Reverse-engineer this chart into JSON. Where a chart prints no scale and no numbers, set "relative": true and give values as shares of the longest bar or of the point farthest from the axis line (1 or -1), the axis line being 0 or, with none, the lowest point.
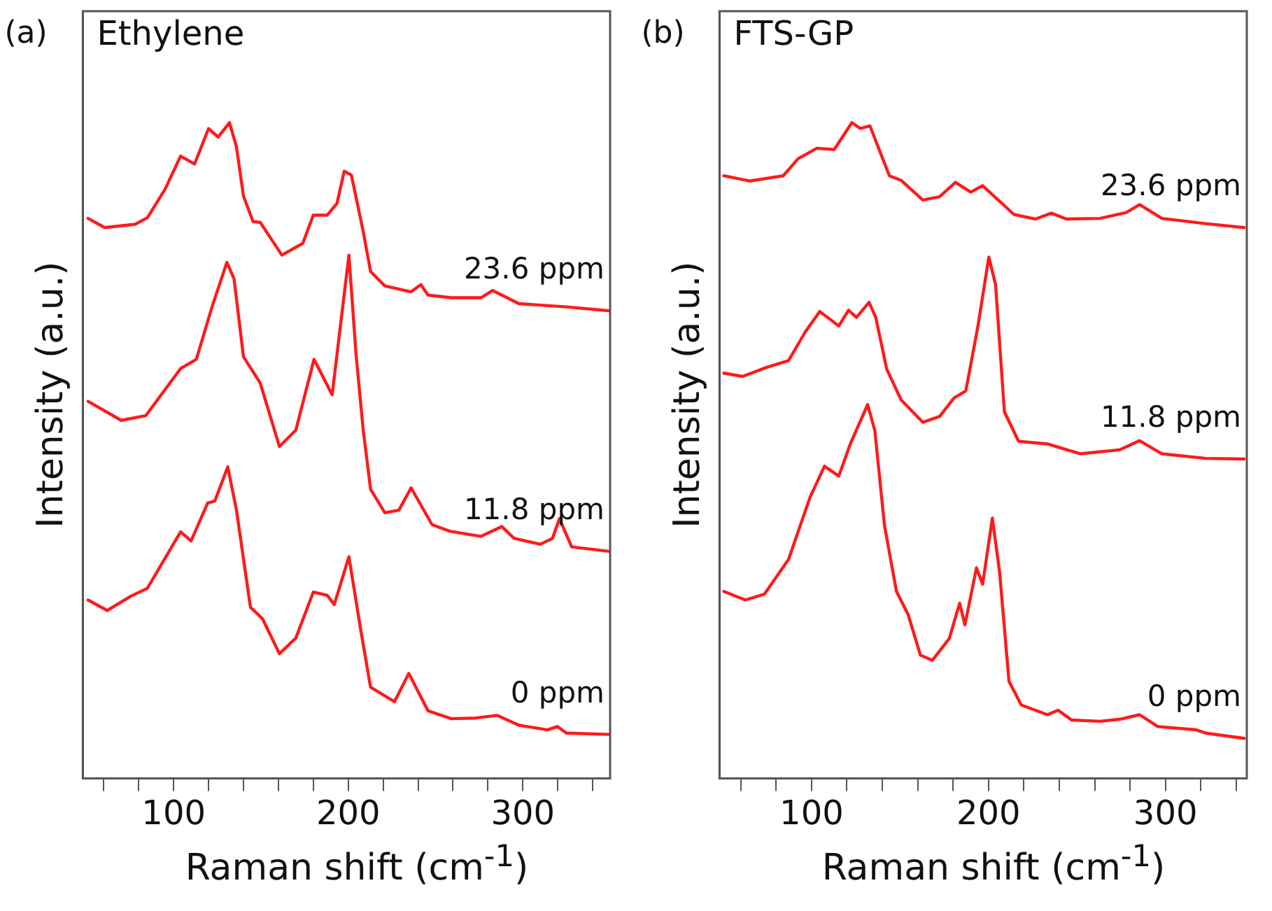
{
  "chart_data": [
    {
      "type": "line",
      "title": "Ethylene",
      "annotations": [
        "(a)"
      ],
      "xlabel": "Raman shift (cm$^{-1}$)",
      "ylabel": "Intensity (a.u.)",
      "relative": true,
      "legend": false,
      "grid": false,
      "marker": "none",
      "line_style": "solid",
      "xlim": [
        48,
        350
      ],
      "xticks": [
        {
          "value": 60,
          "label": null
        },
        {
          "value": 80,
          "label": null
        },
        100,
        {
          "value": 120,
          "label": null
        },
        {
          "value": 140,
          "label": null
        },
        {
          "value": 160,
          "label": null
        },
        {
          "value": 180,
          "label": null
        },
        200,
        {
          "value": 220,
          "label": null
        },
        {
          "value": 240,
          "label": null
        },
        {
          "value": 260,
          "label": null
        },
        {
          "value": 280,
          "label": null
        },
        300,
        {
          "value": 320,
          "label": null
        },
        {
          "value": 340,
          "label": null
        }
      ],
      "series": [
        {
          "name": "23.6 ppm",
          "color": "#ff1a1a",
          "x": [
            51,
            60.5,
            78,
            85,
            95,
            104,
            112,
            120,
            125.5,
            132,
            136,
            140,
            145.5,
            149.6,
            162,
            174,
            180,
            188,
            193.6,
            197.7,
            201.8,
            208.6,
            212.8,
            221,
            236,
            241.6,
            245.7,
            259,
            276,
            282.7,
            297.8,
            325,
            350
          ],
          "values": [
            0.854,
            0.84,
            0.845,
            0.855,
            0.898,
            0.949,
            0.937,
            0.991,
            0.978,
            1.0,
            0.963,
            0.888,
            0.849,
            0.848,
            0.798,
            0.816,
            0.859,
            0.859,
            0.877,
            0.926,
            0.92,
            0.834,
            0.773,
            0.751,
            0.742,
            0.753,
            0.737,
            0.733,
            0.733,
            0.744,
            0.724,
            0.719,
            0.713
          ]
        },
        {
          "name": "11.8 ppm",
          "color": "#ff1a1a",
          "x": [
            51,
            70,
            84,
            104,
            113,
            122,
            130.5,
            134.6,
            140,
            149.6,
            160.6,
            170,
            180.4,
            190.8,
            200.4,
            204.5,
            208.6,
            212.8,
            221,
            229,
            236,
            248,
            258,
            276,
            288,
            295,
            310,
            317,
            321,
            328,
            350
          ],
          "values": [
            0.575,
            0.546,
            0.553,
            0.625,
            0.639,
            0.719,
            0.787,
            0.762,
            0.643,
            0.603,
            0.506,
            0.531,
            0.639,
            0.585,
            0.798,
            0.646,
            0.531,
            0.441,
            0.405,
            0.409,
            0.443,
            0.387,
            0.377,
            0.369,
            0.384,
            0.366,
            0.357,
            0.366,
            0.396,
            0.353,
            0.346
          ]
        },
        {
          "name": "0 ppm",
          "color": "#ff1a1a",
          "x": [
            51,
            62,
            75.6,
            85,
            104,
            110,
            119.5,
            123.6,
            131,
            136,
            144,
            151,
            160.6,
            170,
            180,
            188,
            192,
            200.4,
            207,
            212.8,
            226.5,
            234.7,
            245.7,
            259,
            273,
            285.4,
            297.8,
            314,
            319.8,
            325,
            350
          ],
          "values": [
            0.272,
            0.256,
            0.278,
            0.29,
            0.376,
            0.362,
            0.42,
            0.423,
            0.475,
            0.409,
            0.261,
            0.243,
            0.19,
            0.214,
            0.284,
            0.279,
            0.265,
            0.338,
            0.229,
            0.139,
            0.117,
            0.16,
            0.103,
            0.091,
            0.092,
            0.096,
            0.081,
            0.074,
            0.079,
            0.069,
            0.067
          ]
        }
      ]
    },
    {
      "type": "line",
      "title": "FTS-GP",
      "annotations": [
        "(b)"
      ],
      "xlabel": "Raman shift (cm$^{-1}$)",
      "ylabel": "Intensity (a.u.)",
      "relative": true,
      "legend": false,
      "grid": false,
      "marker": "none",
      "line_style": "solid",
      "xlim": [
        48,
        346
      ],
      "xticks": [
        {
          "value": 60,
          "label": null
        },
        {
          "value": 80,
          "label": null
        },
        100,
        {
          "value": 120,
          "label": null
        },
        {
          "value": 140,
          "label": null
        },
        {
          "value": 160,
          "label": null
        },
        {
          "value": 180,
          "label": null
        },
        200,
        {
          "value": 220,
          "label": null
        },
        {
          "value": 240,
          "label": null
        },
        {
          "value": 260,
          "label": null
        },
        {
          "value": 280,
          "label": null
        },
        300,
        {
          "value": 320,
          "label": null
        },
        {
          "value": 340,
          "label": null
        }
      ],
      "series": [
        {
          "name": "23.6 ppm",
          "color": "#ff1a1a",
          "x": [
            50.4,
            65,
            84,
            92.4,
            103,
            112.8,
            122.8,
            127.6,
            133,
            144,
            150.7,
            162.9,
            172.4,
            181.3,
            190,
            196.7,
            214.4,
            226.6,
            235.5,
            244,
            263,
            278,
            285.4,
            298,
            322.8,
            344.5
          ],
          "values": [
            0.919,
            0.911,
            0.919,
            0.945,
            0.961,
            0.959,
            1.0,
            0.991,
            0.995,
            0.919,
            0.912,
            0.882,
            0.887,
            0.909,
            0.894,
            0.904,
            0.86,
            0.853,
            0.862,
            0.853,
            0.854,
            0.863,
            0.875,
            0.854,
            0.846,
            0.84
          ]
        },
        {
          "name": "11.8 ppm",
          "color": "#ff1a1a",
          "x": [
            50.4,
            61,
            74.8,
            87,
            96.5,
            104.6,
            115.4,
            120.9,
            125.4,
            132.5,
            136.3,
            142.5,
            150.7,
            162.9,
            172.4,
            180.5,
            187.2,
            194,
            200.2,
            204,
            209,
            217,
            233.3,
            252,
            274,
            285.4,
            298,
            322.8,
            344.5
          ],
          "values": [
            0.618,
            0.613,
            0.627,
            0.637,
            0.681,
            0.712,
            0.69,
            0.714,
            0.703,
            0.726,
            0.703,
            0.624,
            0.577,
            0.543,
            0.552,
            0.58,
            0.591,
            0.689,
            0.795,
            0.753,
            0.559,
            0.514,
            0.51,
            0.495,
            0.501,
            0.515,
            0.495,
            0.488,
            0.487
          ]
        },
        {
          "name": "0 ppm",
          "color": "#ff1a1a",
          "x": [
            50.4,
            62.6,
            73.4,
            87,
            99.2,
            107.3,
            115.4,
            122.2,
            131.7,
            135.8,
            141.2,
            148,
            154.7,
            161.5,
            168.3,
            177.8,
            183.7,
            186.7,
            193.2,
            196.7,
            202.2,
            206.3,
            211.6,
            218.5,
            233.3,
            239.3,
            246.9,
            263,
            274,
            285.4,
            295.7,
            317.3,
            322.8,
            344.5
          ],
          "values": [
            0.285,
            0.272,
            0.281,
            0.334,
            0.429,
            0.476,
            0.461,
            0.512,
            0.57,
            0.53,
            0.386,
            0.285,
            0.249,
            0.188,
            0.18,
            0.213,
            0.267,
            0.234,
            0.321,
            0.296,
            0.397,
            0.314,
            0.148,
            0.112,
            0.097,
            0.104,
            0.089,
            0.087,
            0.09,
            0.097,
            0.079,
            0.074,
            0.069,
            0.061
          ]
        }
      ]
    }
  ]
}
